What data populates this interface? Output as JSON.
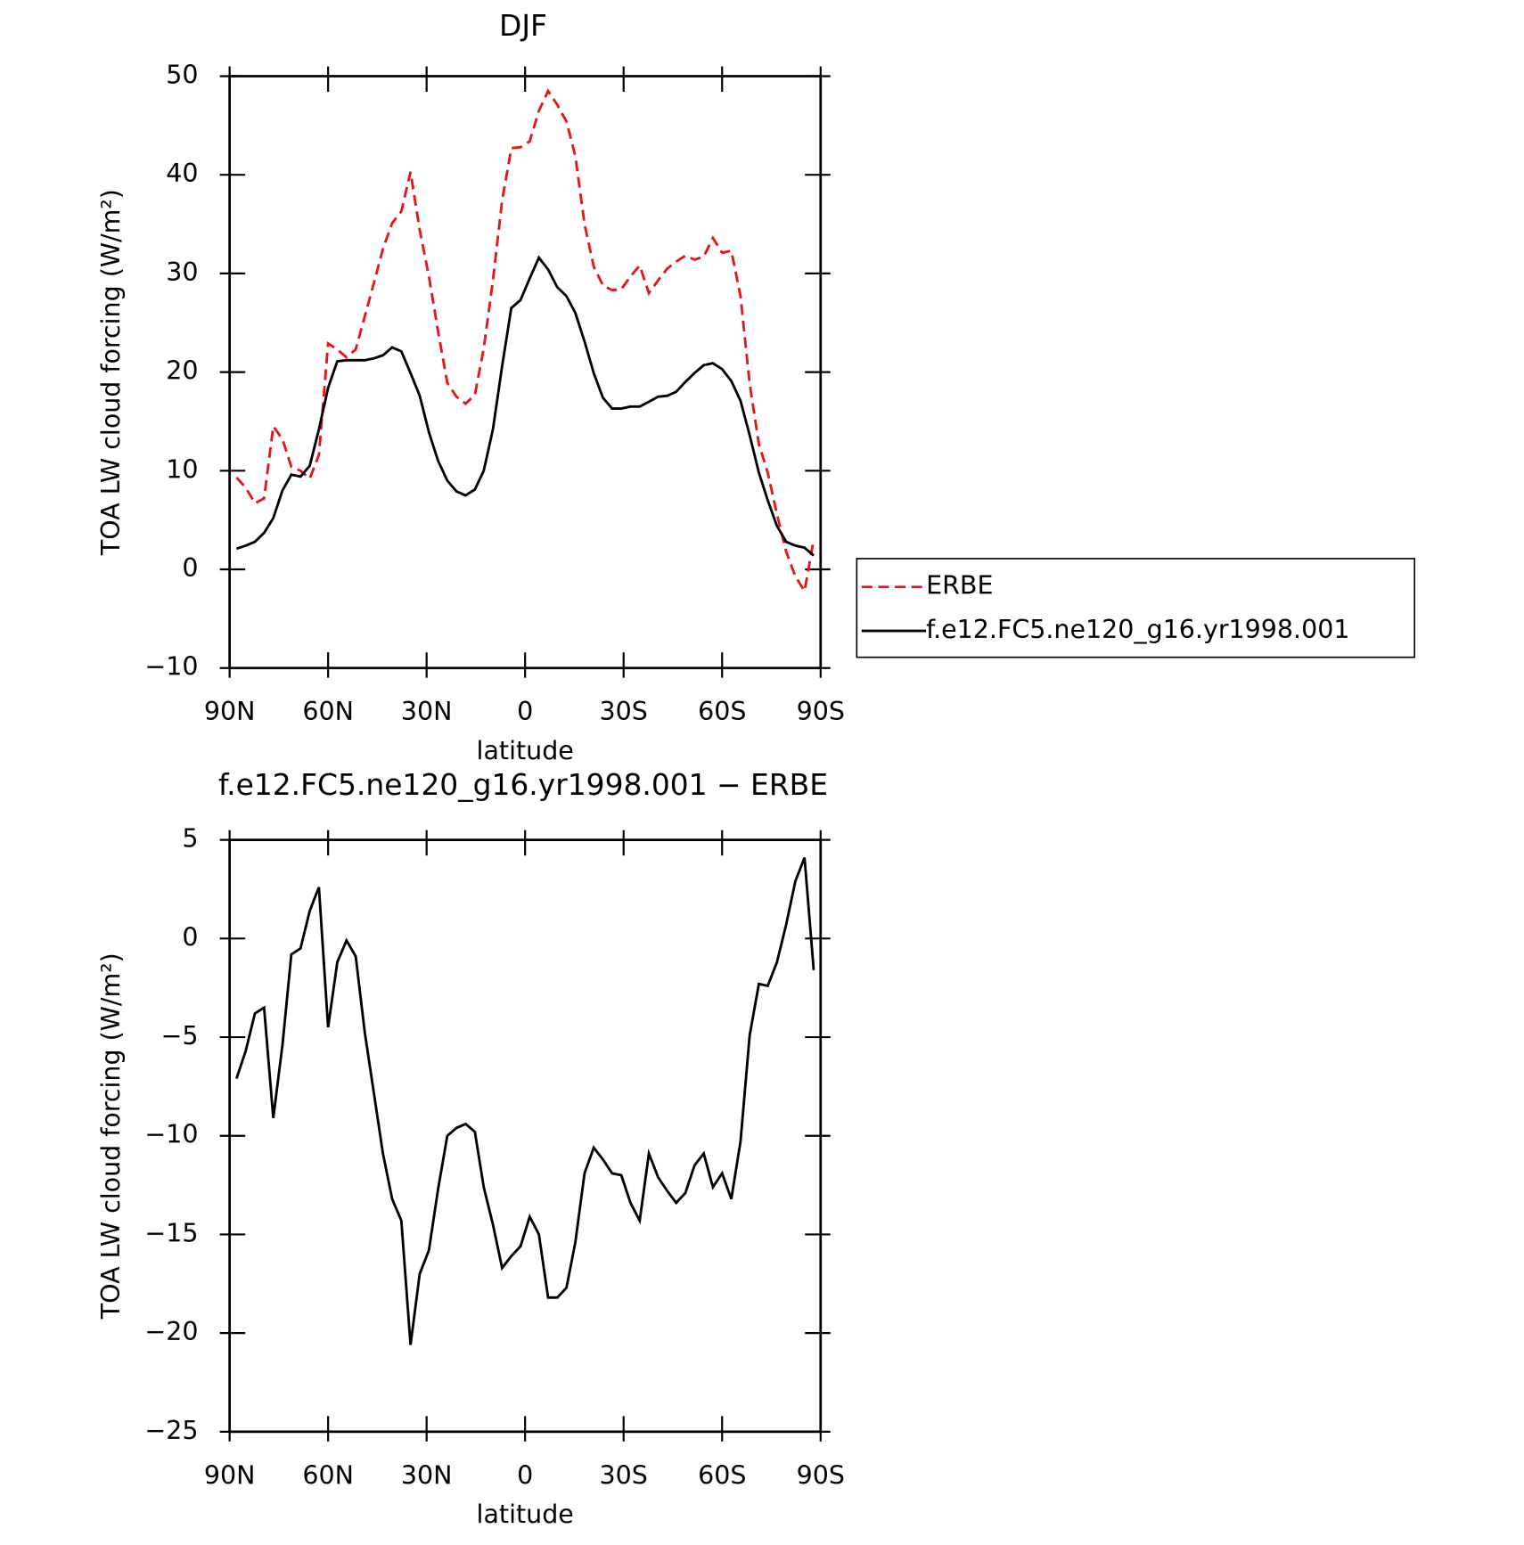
{
  "chart_data": [
    {
      "type": "line",
      "title": "DJF",
      "xlabel": "latitude",
      "ylabel": "TOA LW cloud forcing (W/m²)",
      "x": [
        87.9,
        85.1,
        82.3,
        79.5,
        76.7,
        73.9,
        71.2,
        68.4,
        65.6,
        62.8,
        60.0,
        57.2,
        54.4,
        51.6,
        48.8,
        46.0,
        43.3,
        40.5,
        37.7,
        34.9,
        32.1,
        29.3,
        26.5,
        23.7,
        20.9,
        18.1,
        15.3,
        12.6,
        9.8,
        7.0,
        4.2,
        1.4,
        -1.4,
        -4.2,
        -7.0,
        -9.8,
        -12.6,
        -15.3,
        -18.1,
        -20.9,
        -23.7,
        -26.5,
        -29.3,
        -32.1,
        -34.9,
        -37.7,
        -40.5,
        -43.3,
        -46.0,
        -48.8,
        -51.6,
        -54.4,
        -57.2,
        -60.0,
        -62.8,
        -65.6,
        -68.4,
        -71.2,
        -73.9,
        -76.7,
        -79.5,
        -82.3,
        -85.1,
        -87.9
      ],
      "series": [
        {
          "name": "ERBE",
          "color": "#e8141a",
          "line_style": "dashed",
          "values": [
            9.3,
            8.3,
            6.7,
            7.2,
            14.5,
            13.2,
            10.4,
            10.0,
            9.2,
            11.6,
            22.9,
            22.3,
            21.5,
            22.3,
            25.7,
            29.1,
            32.5,
            35.1,
            36.3,
            40.3,
            34.4,
            29.7,
            24.1,
            18.9,
            17.5,
            16.8,
            17.7,
            22.4,
            29.3,
            37.4,
            42.7,
            42.8,
            43.4,
            46.5,
            48.5,
            47.1,
            45.4,
            41.9,
            35.0,
            30.7,
            28.8,
            28.3,
            28.4,
            29.7,
            30.8,
            28.0,
            29.3,
            30.5,
            31.2,
            31.8,
            31.4,
            31.7,
            33.6,
            32.1,
            32.3,
            27.7,
            18.8,
            12.7,
            9.8,
            5.6,
            1.8,
            -0.7,
            -2.2,
            3.0
          ]
        },
        {
          "name": "f.e12.FC5.ne120_g16.yr1998.001",
          "color": "#000000",
          "line_style": "solid",
          "values": [
            2.1,
            2.4,
            2.8,
            3.7,
            5.2,
            8.0,
            9.6,
            9.4,
            10.5,
            14.2,
            18.4,
            21.1,
            21.2,
            21.2,
            21.2,
            21.4,
            21.7,
            22.5,
            22.1,
            19.9,
            17.6,
            13.9,
            11.0,
            9.0,
            7.9,
            7.5,
            8.1,
            10.0,
            14.2,
            20.6,
            26.5,
            27.3,
            29.5,
            31.6,
            30.4,
            28.6,
            27.7,
            26.0,
            23.1,
            19.9,
            17.4,
            16.3,
            16.3,
            16.5,
            16.5,
            17.0,
            17.5,
            17.6,
            18.0,
            19.0,
            19.9,
            20.7,
            20.9,
            20.3,
            19.1,
            17.1,
            13.6,
            9.8,
            7.0,
            4.4,
            2.8,
            2.4,
            2.2,
            1.4
          ]
        }
      ],
      "xlim": [
        90,
        -90
      ],
      "xticks": [
        {
          "value": 90,
          "label": "90N"
        },
        {
          "value": 60,
          "label": "60N"
        },
        {
          "value": 30,
          "label": "30N"
        },
        0,
        {
          "value": -30,
          "label": "30S"
        },
        {
          "value": -60,
          "label": "60S"
        },
        {
          "value": -90,
          "label": "90S"
        }
      ],
      "ylim": [
        -10,
        50
      ],
      "yticks": [
        {
          "value": -10,
          "label": "−10"
        },
        0,
        10,
        20,
        30,
        40,
        50
      ],
      "legend": "right"
    },
    {
      "type": "line",
      "title": "f.e12.FC5.ne120_g16.yr1998.001 − ERBE",
      "xlabel": "latitude",
      "ylabel": "TOA LW cloud forcing (W/m²)",
      "x": [
        87.9,
        85.1,
        82.3,
        79.5,
        76.7,
        73.9,
        71.2,
        68.4,
        65.6,
        62.8,
        60.0,
        57.2,
        54.4,
        51.6,
        48.8,
        46.0,
        43.3,
        40.5,
        37.7,
        34.9,
        32.1,
        29.3,
        26.5,
        23.7,
        20.9,
        18.1,
        15.3,
        12.6,
        9.8,
        7.0,
        4.2,
        1.4,
        -1.4,
        -4.2,
        -7.0,
        -9.8,
        -12.6,
        -15.3,
        -18.1,
        -20.9,
        -23.7,
        -26.5,
        -29.3,
        -32.1,
        -34.9,
        -37.7,
        -40.5,
        -43.3,
        -46.0,
        -48.8,
        -51.6,
        -54.4,
        -57.2,
        -60.0,
        -62.8,
        -65.6,
        -68.4,
        -71.2,
        -73.9,
        -76.7,
        -79.5,
        -82.3,
        -85.1,
        -87.9
      ],
      "color": "#000000",
      "values": [
        -7.1,
        -5.7,
        -3.8,
        -3.5,
        -9.1,
        -5.4,
        -0.8,
        -0.5,
        1.4,
        2.6,
        -4.5,
        -1.2,
        -0.1,
        -0.9,
        -4.8,
        -7.9,
        -10.9,
        -13.2,
        -14.3,
        -20.6,
        -17.0,
        -15.8,
        -12.7,
        -10.0,
        -9.6,
        -9.4,
        -9.8,
        -12.6,
        -14.5,
        -16.7,
        -16.1,
        -15.6,
        -14.1,
        -15.0,
        -18.2,
        -18.2,
        -17.7,
        -15.4,
        -11.9,
        -10.6,
        -11.2,
        -11.9,
        -12.0,
        -13.4,
        -14.3,
        -10.9,
        -12.1,
        -12.8,
        -13.4,
        -12.9,
        -11.5,
        -10.9,
        -12.6,
        -11.9,
        -13.2,
        -10.3,
        -4.9,
        -2.3,
        -2.4,
        -1.2,
        0.7,
        2.9,
        4.1,
        -1.6
      ],
      "xlim": [
        90,
        -90
      ],
      "xticks": [
        {
          "value": 90,
          "label": "90N"
        },
        {
          "value": 60,
          "label": "60N"
        },
        {
          "value": 30,
          "label": "30N"
        },
        0,
        {
          "value": -30,
          "label": "30S"
        },
        {
          "value": -60,
          "label": "60S"
        },
        {
          "value": -90,
          "label": "90S"
        }
      ],
      "ylim": [
        -25,
        5
      ],
      "yticks": [
        {
          "value": -25,
          "label": "−25"
        },
        {
          "value": -20,
          "label": "−20"
        },
        {
          "value": -15,
          "label": "−15"
        },
        {
          "value": -10,
          "label": "−10"
        },
        {
          "value": -5,
          "label": "−5"
        },
        0,
        5
      ]
    }
  ]
}
